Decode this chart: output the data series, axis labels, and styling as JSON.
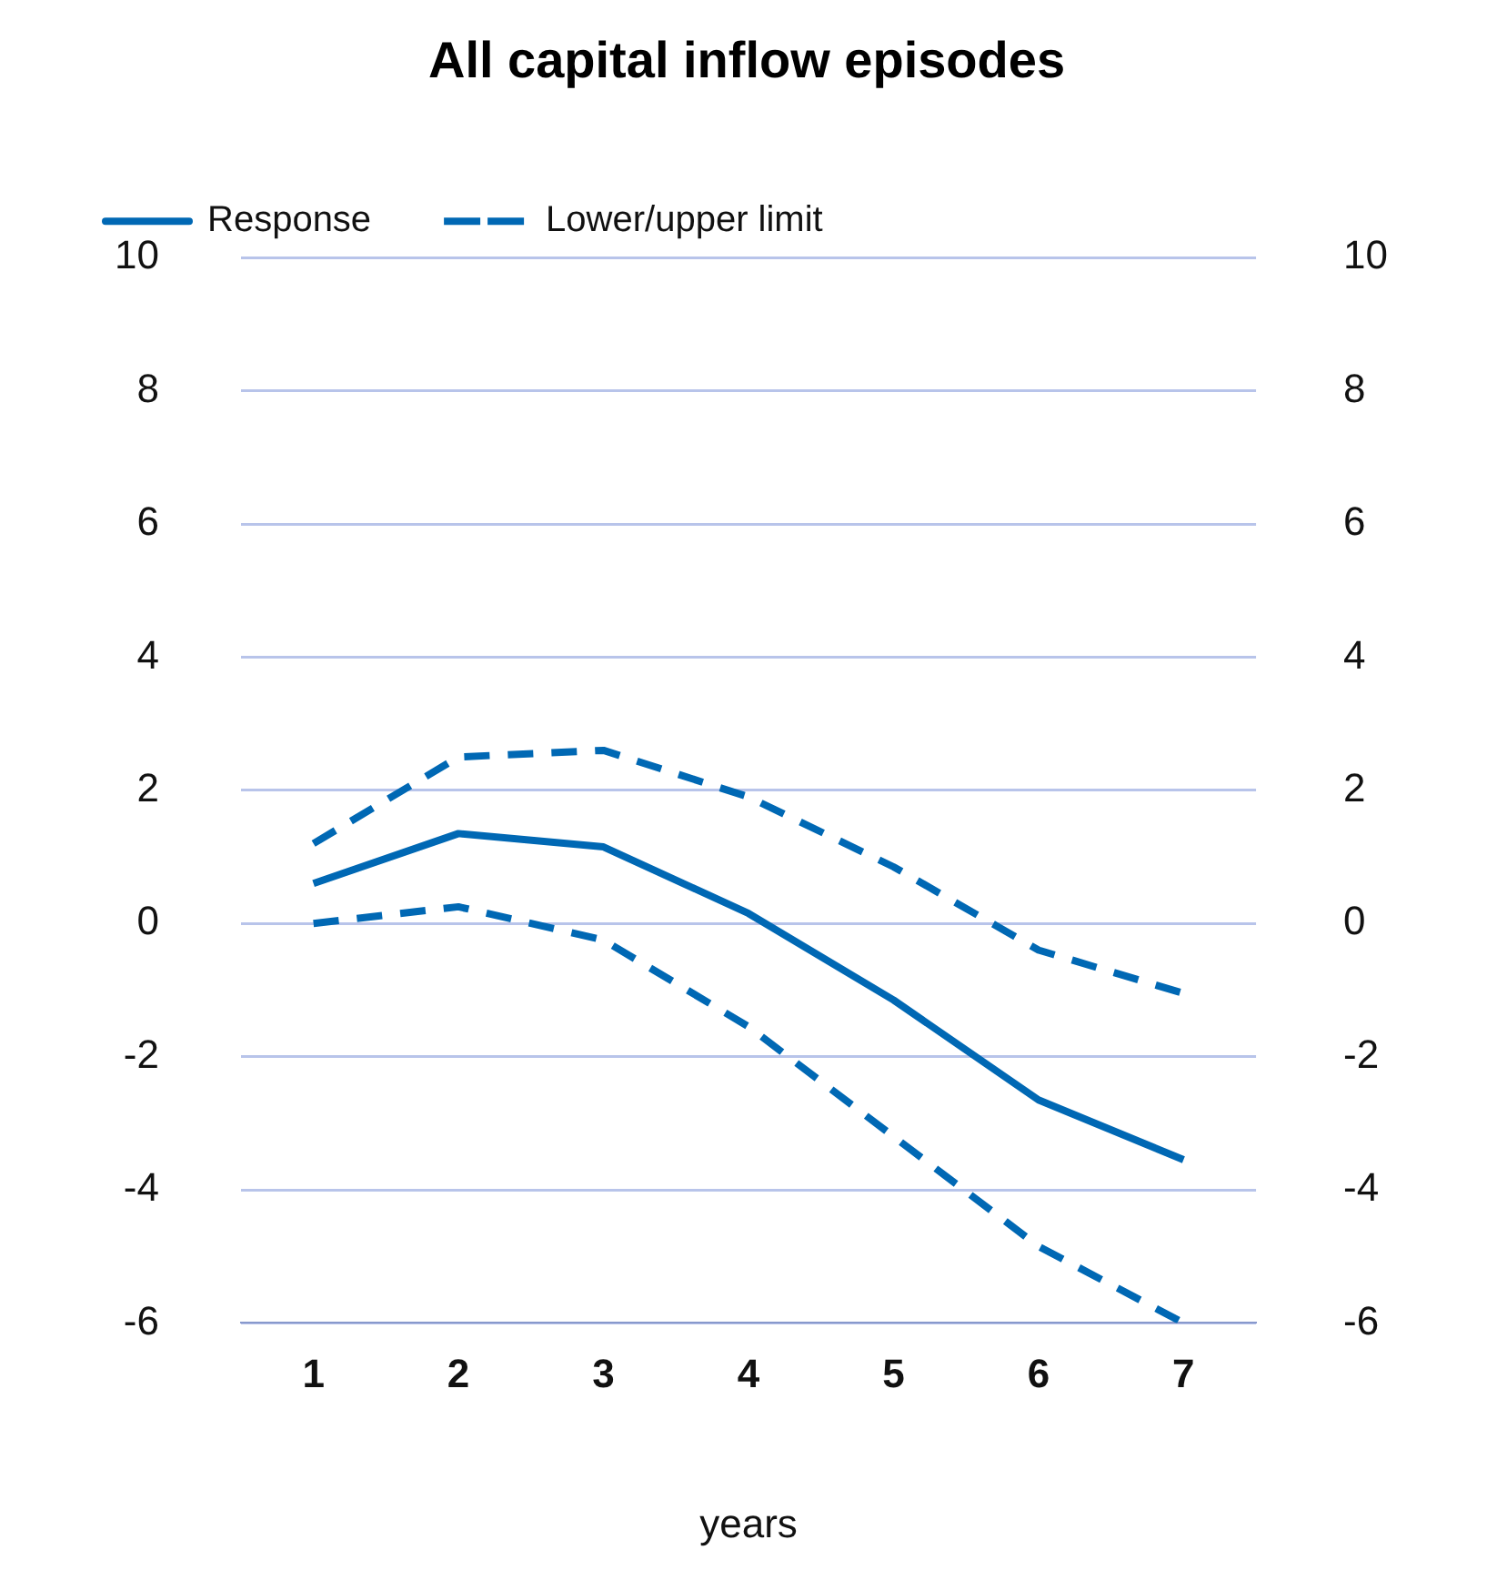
{
  "chart_data": {
    "type": "line",
    "title": "All capital inflow episodes",
    "xlabel": "years",
    "categories": [
      "1",
      "2",
      "3",
      "4",
      "5",
      "6",
      "7"
    ],
    "series": [
      {
        "name": "Response",
        "color": "#0068b4",
        "line_style": "solid",
        "values": [
          0.6,
          1.35,
          1.15,
          0.15,
          -1.15,
          -2.65,
          -3.55
        ]
      },
      {
        "name": "Lower/upper limit",
        "color": "#0068b4",
        "line_style": "dashed",
        "values": [
          1.2,
          2.5,
          2.6,
          1.9,
          0.85,
          -0.4,
          -1.05
        ]
      },
      {
        "color": "#0068b4",
        "line_style": "dashed",
        "values": [
          0,
          0.25,
          -0.25,
          -1.55,
          -3.2,
          -4.85,
          -6
        ]
      }
    ],
    "ylim": [
      -6,
      10
    ],
    "yticks": [
      -6,
      -4,
      -2,
      0,
      2,
      4,
      6,
      8,
      10
    ],
    "y2lim": [
      -6,
      10
    ],
    "y2ticks": [
      -6,
      -4,
      -2,
      0,
      2,
      4,
      6,
      8,
      10
    ],
    "grid": "y",
    "legend": "top left",
    "marker": "none"
  }
}
